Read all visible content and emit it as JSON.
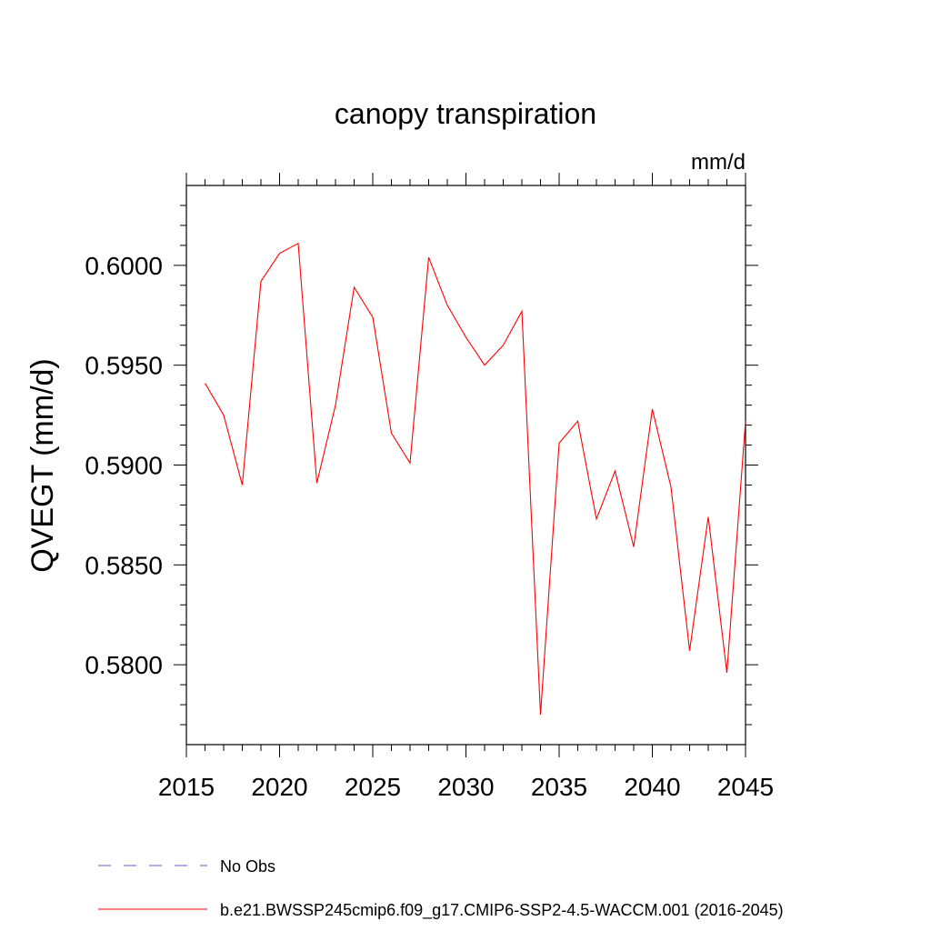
{
  "chart_data": {
    "type": "line",
    "title": "canopy transpiration",
    "units": "mm/d",
    "ylabel": "QVEGT  (mm/d)",
    "xlabel": "",
    "xlim": [
      2015,
      2045
    ],
    "ylim": [
      0.576,
      0.604
    ],
    "xticks": [
      "2015",
      "2020",
      "2025",
      "2030",
      "2035",
      "2040",
      "2045"
    ],
    "yticks": [
      "0.5800",
      "0.5850",
      "0.5900",
      "0.5950",
      "0.6000"
    ],
    "grid": false,
    "legend_position": "bottom",
    "series": [
      {
        "name": "b.e21.BWSSP245cmip6.f09_g17.CMIP6-SSP2-4.5-WACCM.001 (2016-2045)",
        "color": "#ff0000",
        "style": "solid",
        "x": [
          2016,
          2017,
          2018,
          2019,
          2020,
          2021,
          2022,
          2023,
          2024,
          2025,
          2026,
          2027,
          2028,
          2029,
          2030,
          2031,
          2032,
          2033,
          2034,
          2035,
          2036,
          2037,
          2038,
          2039,
          2040,
          2041,
          2042,
          2043,
          2044,
          2045
        ],
        "values": [
          0.5941,
          0.5925,
          0.589,
          0.5992,
          0.6006,
          0.6011,
          0.5891,
          0.593,
          0.5989,
          0.5974,
          0.5916,
          0.5901,
          0.6004,
          0.598,
          0.5964,
          0.595,
          0.596,
          0.5977,
          0.5775,
          0.5911,
          0.5922,
          0.5873,
          0.5897,
          0.5859,
          0.5928,
          0.5889,
          0.5807,
          0.5874,
          0.5796,
          0.5922
        ]
      },
      {
        "name": "No Obs",
        "color": "#6a5acd",
        "style": "dashed",
        "x": [],
        "values": []
      }
    ]
  }
}
